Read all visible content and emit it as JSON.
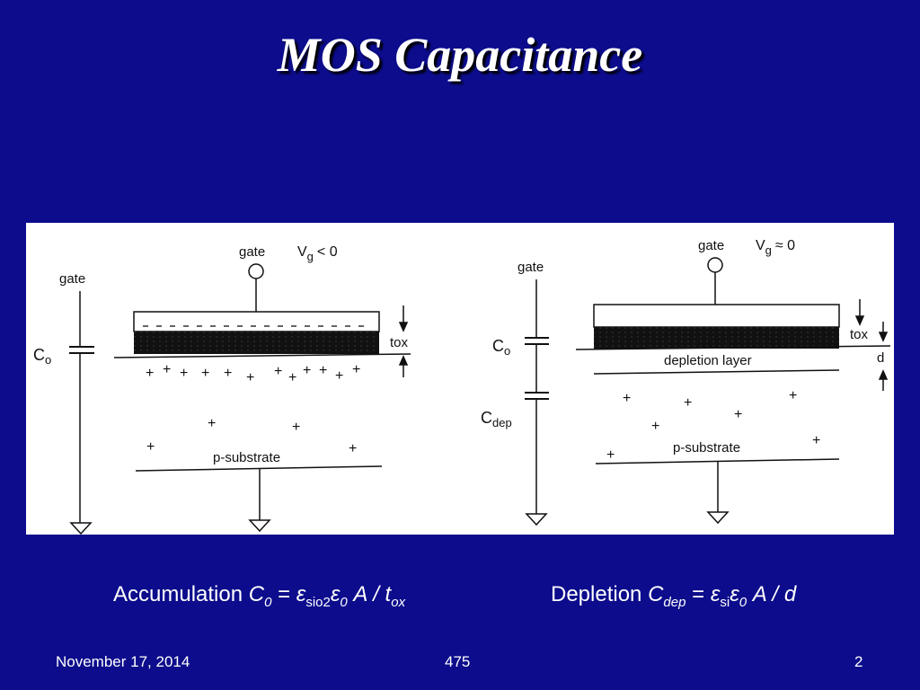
{
  "slide": {
    "title": "MOS Capacitance",
    "footer": {
      "date": "November 17, 2014",
      "course": "475",
      "page": "2"
    }
  },
  "diagram_left": {
    "gate_label": "gate",
    "gate_label_top": "gate",
    "vg": "V",
    "vg_sub": "g",
    "vg_cond": "< 0",
    "c0": "C",
    "c0_sub": "o",
    "tox": "tox",
    "substrate": "p-substrate"
  },
  "diagram_right": {
    "gate_label": "gate",
    "gate_label_top": "gate",
    "vg": "V",
    "vg_sub": "g",
    "vg_cond": "≈ 0",
    "c0": "C",
    "c0_sub": "o",
    "cdep": "C",
    "cdep_sub": "dep",
    "tox": "tox",
    "d": "d",
    "depletion": "depletion layer",
    "substrate": "p-substrate"
  },
  "formulas": {
    "accumulation": {
      "label": "Accumulation ",
      "c": "C",
      "c_sub": "0",
      "eq": " = ",
      "eps1": "ε",
      "eps1_sub": "sio2",
      "eps2": "ε",
      "eps2_sub": "0",
      "rest": " A / t",
      "rest_sub": "ox"
    },
    "depletion": {
      "label": "Depletion ",
      "c": "C",
      "c_sub": "dep",
      "eq": " = ",
      "eps1": "ε",
      "eps1_sub": "si",
      "eps2": "ε",
      "eps2_sub": "0",
      "rest": " A / d"
    }
  }
}
